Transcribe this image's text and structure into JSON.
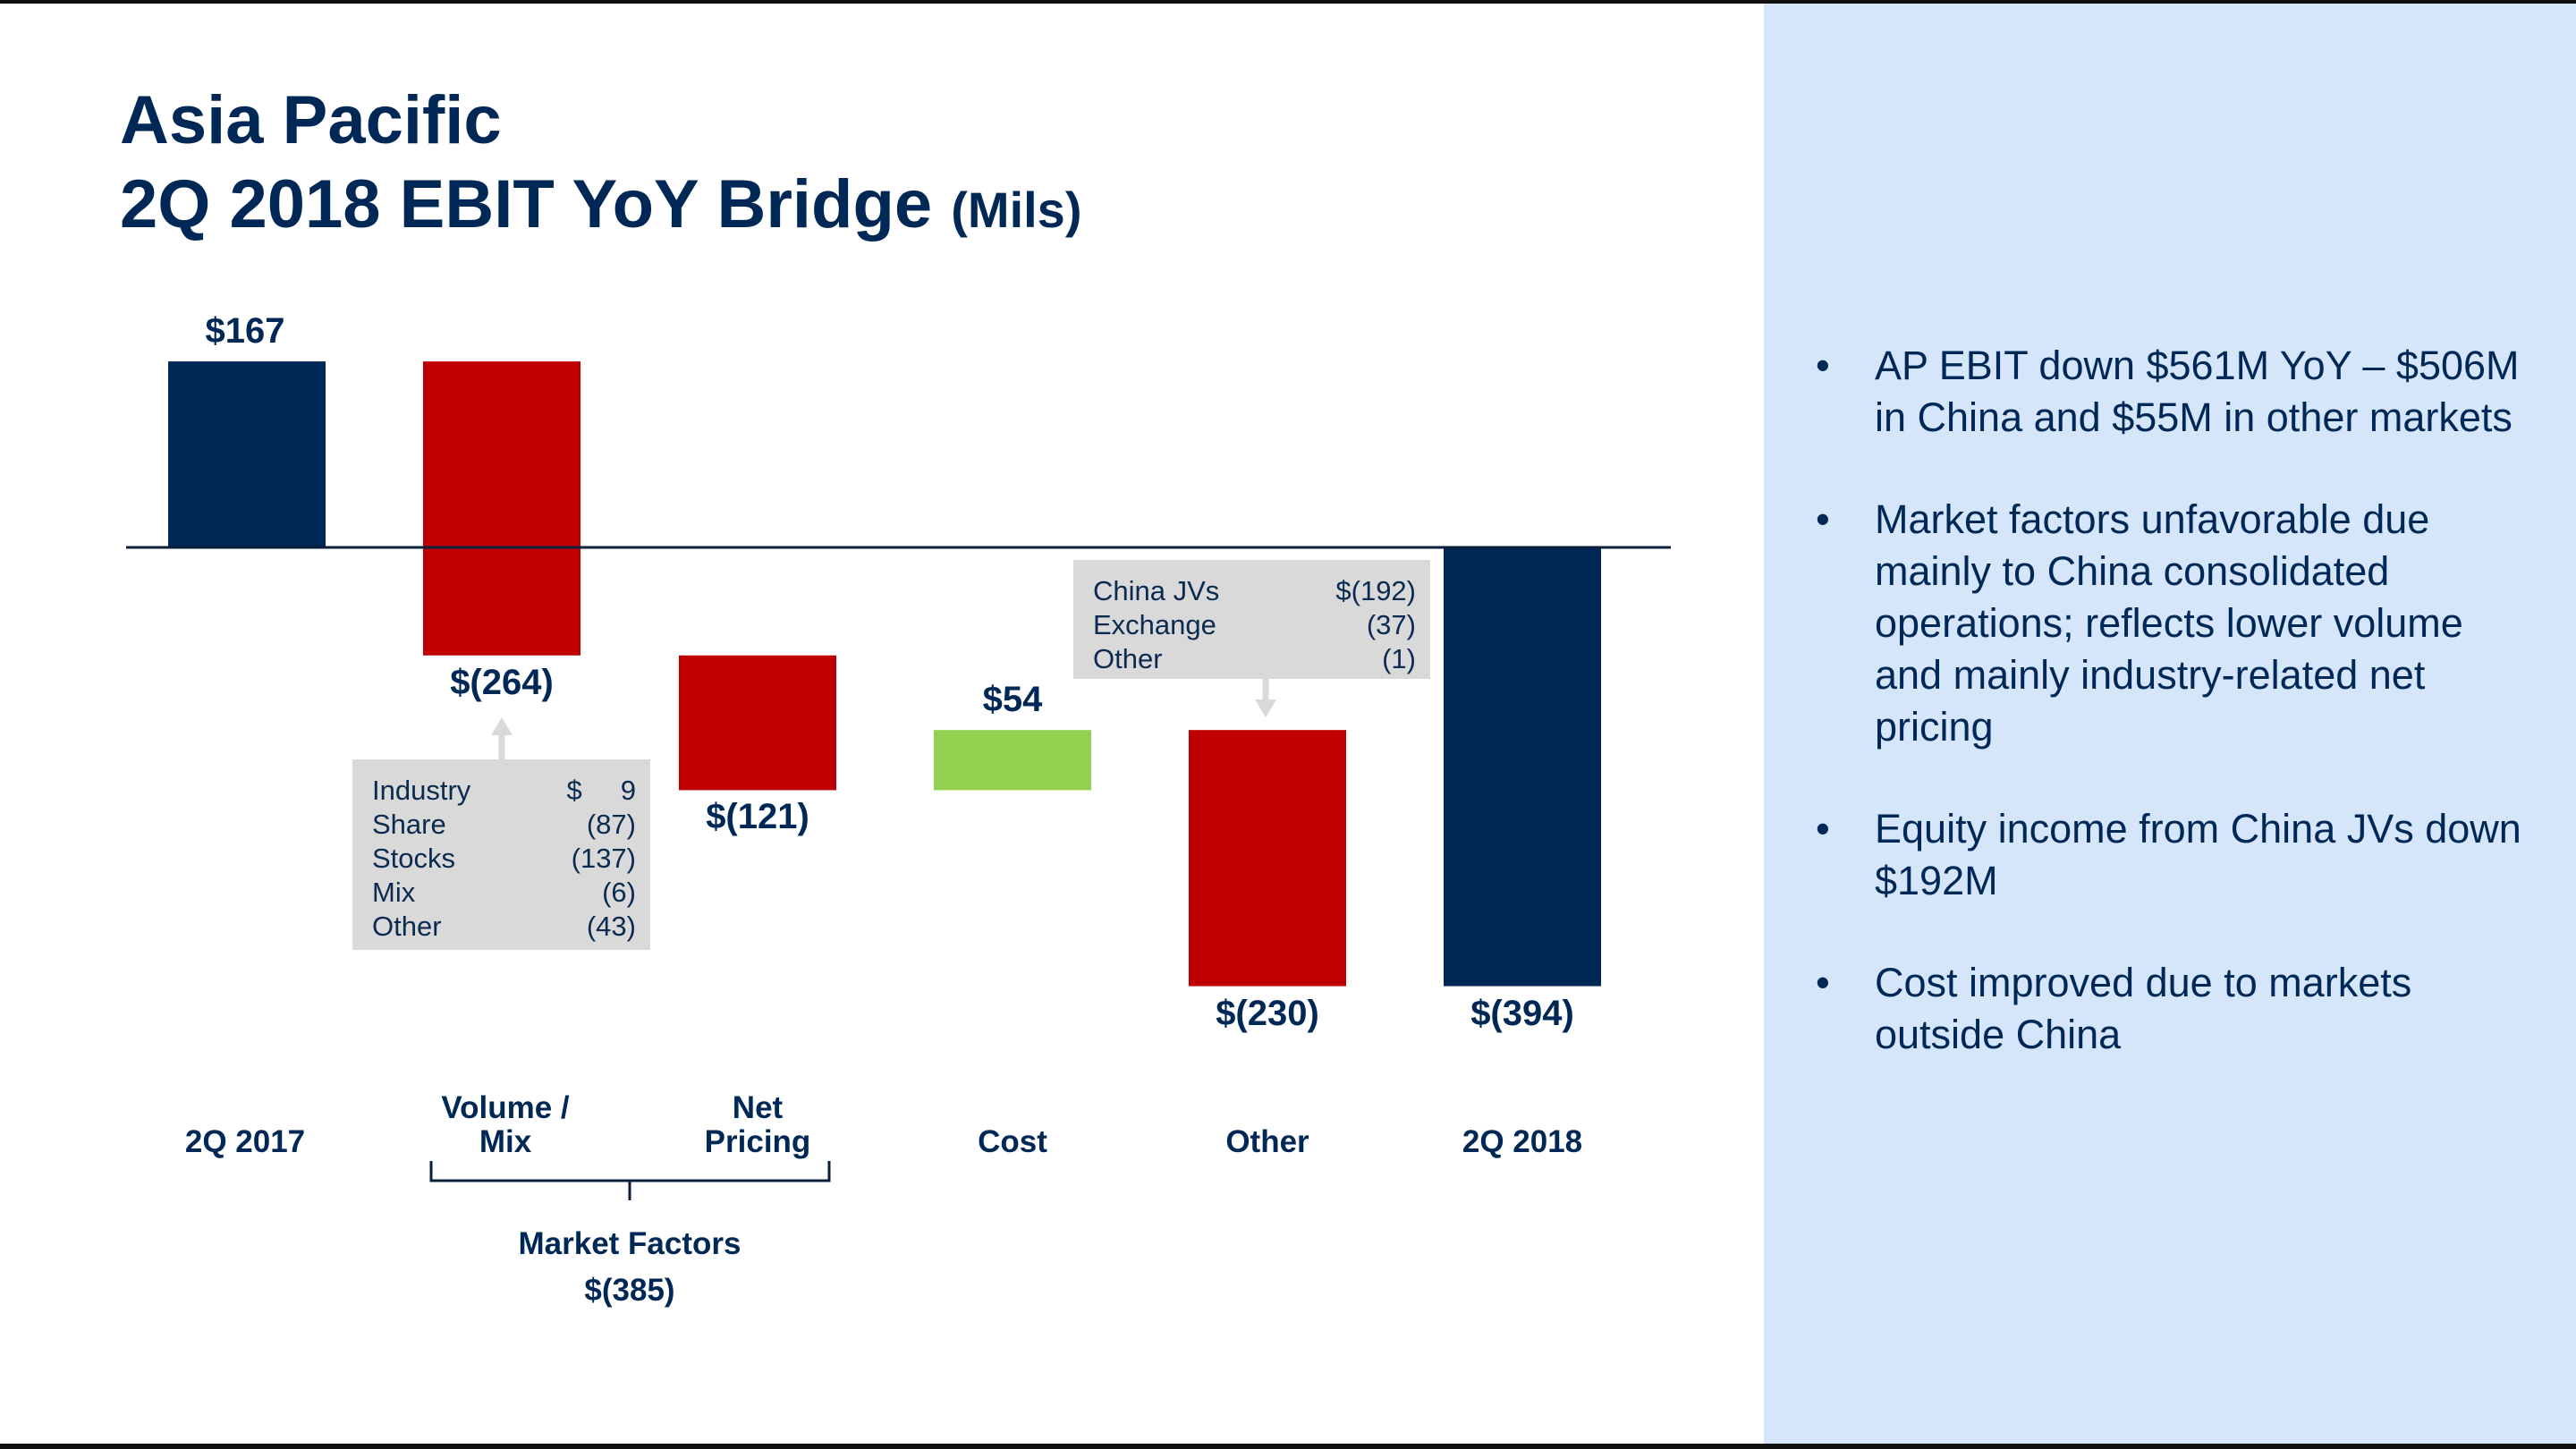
{
  "title": {
    "line1": "Asia Pacific",
    "line2": "2Q 2018 EBIT YoY Bridge",
    "unit": "(Mils)"
  },
  "colors": {
    "navy": "#002856",
    "red": "#c00000",
    "green": "#92d050",
    "panel": "#d5e6fb",
    "callout": "#d9d9d9"
  },
  "chart_data": {
    "type": "waterfall",
    "categories": [
      "2Q 2017",
      "Volume / Mix",
      "Net Pricing",
      "Cost",
      "Other",
      "2Q 2018"
    ],
    "values": [
      167,
      -264,
      -121,
      54,
      -230,
      -394
    ],
    "kinds": [
      "total",
      "delta",
      "delta",
      "delta",
      "delta",
      "total"
    ],
    "data_labels": [
      "$167",
      "$(264)",
      "$(121)",
      "$54",
      "$(230)",
      "$(394)"
    ],
    "category_labels": [
      [
        "2Q 2017"
      ],
      [
        "Volume /",
        "Mix"
      ],
      [
        "Net",
        "Pricing"
      ],
      [
        "Cost"
      ],
      [
        "Other"
      ],
      [
        "2Q 2018"
      ]
    ],
    "group": {
      "label": "Market Factors",
      "value": "$(385)",
      "spans": [
        "Volume / Mix",
        "Net Pricing"
      ]
    }
  },
  "callouts": {
    "volume_mix": [
      {
        "label": "Industry",
        "value": "$     9"
      },
      {
        "label": "Share",
        "value": "(87)"
      },
      {
        "label": "Stocks",
        "value": "(137)"
      },
      {
        "label": "Mix",
        "value": "(6)"
      },
      {
        "label": "Other",
        "value": "(43)"
      }
    ],
    "other": [
      {
        "label": "China JVs",
        "value": "$(192)"
      },
      {
        "label": "Exchange",
        "value": "(37)"
      },
      {
        "label": "Other",
        "value": "(1)"
      }
    ]
  },
  "bullets": [
    "AP EBIT down $561M YoY – $506M in China and $55M in other markets",
    "Market factors unfavorable due mainly to China consolidated operations; reflects lower volume and mainly industry-related net pricing",
    "Equity income from China JVs down $192M",
    "Cost improved due to markets outside China"
  ],
  "bullet_symbol": "•"
}
